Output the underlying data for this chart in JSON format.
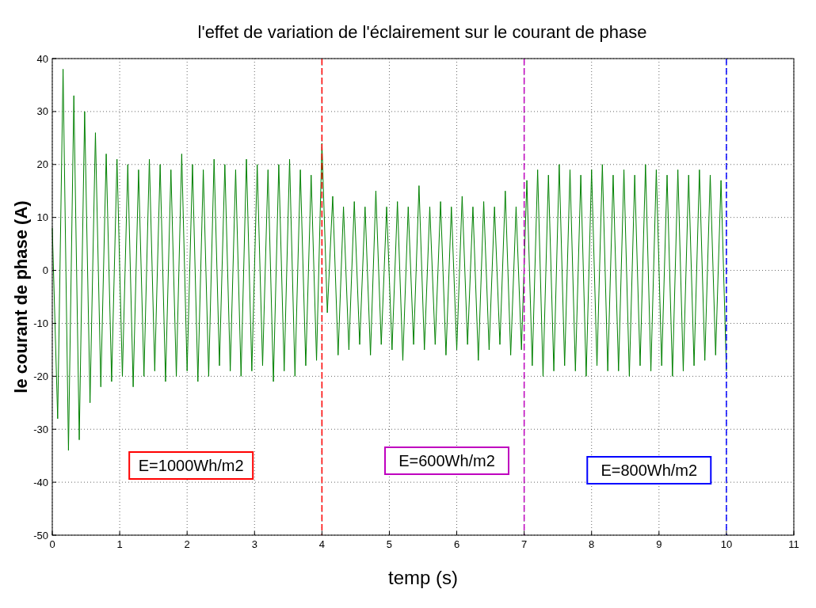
{
  "chart_data": {
    "type": "line",
    "title": "l'effet de variation de l'éclairement sur le courant de phase",
    "xlabel": "temp (s)",
    "ylabel": "le courant de phase  (A)",
    "x": [
      0,
      0.08,
      0.16,
      0.24,
      0.32,
      0.4,
      0.48,
      0.56,
      0.64,
      0.72,
      0.8,
      0.88,
      0.96,
      1.04,
      1.12,
      1.2,
      1.28,
      1.36,
      1.44,
      1.52,
      1.6,
      1.68,
      1.76,
      1.84,
      1.92,
      2,
      2.08,
      2.16,
      2.24,
      2.32,
      2.4,
      2.48,
      2.56,
      2.64,
      2.72,
      2.8,
      2.88,
      2.96,
      3.04,
      3.12,
      3.2,
      3.28,
      3.36,
      3.44,
      3.52,
      3.6,
      3.68,
      3.76,
      3.84,
      3.92,
      4,
      4.08,
      4.16,
      4.24,
      4.32,
      4.4,
      4.48,
      4.56,
      4.64,
      4.72,
      4.8,
      4.88,
      4.96,
      5.04,
      5.12,
      5.2,
      5.28,
      5.36,
      5.44,
      5.52,
      5.6,
      5.68,
      5.76,
      5.84,
      5.92,
      6,
      6.08,
      6.16,
      6.24,
      6.32,
      6.4,
      6.48,
      6.56,
      6.64,
      6.72,
      6.8,
      6.88,
      6.96,
      7.04,
      7.12,
      7.2,
      7.28,
      7.36,
      7.44,
      7.52,
      7.6,
      7.68,
      7.76,
      7.84,
      7.92,
      8,
      8.08,
      8.16,
      8.24,
      8.32,
      8.4,
      8.48,
      8.56,
      8.64,
      8.72,
      8.8,
      8.88,
      8.96,
      9.04,
      9.12,
      9.2,
      9.28,
      9.36,
      9.44,
      9.52,
      9.6,
      9.68,
      9.76,
      9.84,
      9.92,
      10
    ],
    "series": [
      {
        "color": "#008000",
        "values": [
          8,
          -28,
          38,
          -34,
          33,
          -32,
          30,
          -25,
          26,
          -22,
          22,
          -21,
          21,
          -20,
          20,
          -22,
          19,
          -20,
          21,
          -19,
          20,
          -21,
          19,
          -20,
          22,
          -19,
          20,
          -21,
          19,
          -20,
          21,
          -18,
          20,
          -19,
          19,
          -20,
          21,
          -19,
          20,
          -18,
          19,
          -21,
          20,
          -19,
          21,
          -20,
          19,
          -18,
          18,
          -17,
          24,
          -8,
          14,
          -16,
          12,
          -15,
          13,
          -14,
          12,
          -16,
          15,
          -14,
          12,
          -15,
          13,
          -17,
          12,
          -14,
          16,
          -15,
          12,
          -14,
          13,
          -16,
          12,
          -15,
          14,
          -14,
          12,
          -17,
          13,
          -15,
          12,
          -14,
          15,
          -16,
          12,
          -15,
          17,
          -18,
          19,
          -20,
          18,
          -19,
          20,
          -18,
          19,
          -19,
          18,
          -20,
          19,
          -18,
          20,
          -19,
          18,
          -19,
          19,
          -20,
          18,
          -18,
          20,
          -19,
          19,
          -18,
          18,
          -20,
          19,
          -19,
          18,
          -18,
          19,
          -17,
          18,
          -16,
          17,
          -19
        ]
      }
    ],
    "xlim": [
      0,
      11
    ],
    "xticks": [
      0,
      1,
      2,
      3,
      4,
      5,
      6,
      7,
      8,
      9,
      10,
      11
    ],
    "ylim": [
      -50,
      40
    ],
    "yticks": [
      -50,
      -40,
      -30,
      -20,
      -10,
      0,
      10,
      20,
      30,
      40
    ],
    "grid": true,
    "line_style": "solid",
    "marker": "none",
    "ref_lines": [
      {
        "axis": "x",
        "value": 4,
        "color": "#ff0000",
        "line_style": "dashed"
      },
      {
        "axis": "x",
        "value": 7,
        "color": "#bf00bf",
        "line_style": "dashed"
      },
      {
        "axis": "x",
        "value": 10,
        "color": "#0000ff",
        "line_style": "dashed"
      }
    ],
    "annotations": [
      "E=1000Wh/m2",
      "E=600Wh/m2",
      "E=800Wh/m2"
    ]
  }
}
